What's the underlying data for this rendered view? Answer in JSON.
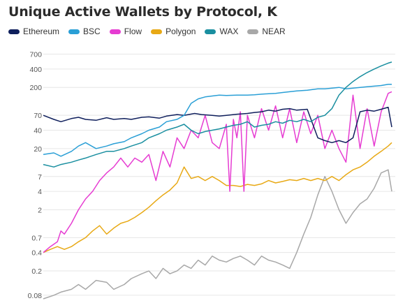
{
  "chart_data": {
    "type": "line",
    "title": "Unique Active Wallets by Protocol, K",
    "yscale": "log",
    "ylim": [
      0.07,
      900
    ],
    "yticks": [
      {
        "v": 700,
        "label": "700"
      },
      {
        "v": 400,
        "label": "400"
      },
      {
        "v": 200,
        "label": "200"
      },
      {
        "v": 70,
        "label": "70"
      },
      {
        "v": 40,
        "label": "40"
      },
      {
        "v": 20,
        "label": "20"
      },
      {
        "v": 7,
        "label": "7"
      },
      {
        "v": 4,
        "label": "4"
      },
      {
        "v": 2,
        "label": "2"
      },
      {
        "v": 0.7,
        "label": "0.7"
      },
      {
        "v": 0.4,
        "label": "0.4"
      },
      {
        "v": 0.2,
        "label": "0.2"
      },
      {
        "v": 0.08,
        "label": "0.08"
      }
    ],
    "xlim": [
      0,
      100
    ],
    "grid": true,
    "legend_position": "top-left",
    "series": [
      {
        "name": "Ethereum",
        "color": "#0f1f5c",
        "x": [
          0,
          3,
          5,
          8,
          10,
          12,
          15,
          18,
          20,
          23,
          25,
          28,
          30,
          33,
          35,
          38,
          40,
          43,
          45,
          48,
          50,
          52,
          55,
          58,
          60,
          62,
          64,
          66,
          68,
          70,
          72,
          75,
          78,
          80,
          82,
          84,
          86,
          88,
          90,
          92,
          94,
          96,
          98,
          99
        ],
        "y": [
          70,
          60,
          55,
          62,
          65,
          60,
          58,
          64,
          60,
          62,
          60,
          65,
          66,
          63,
          68,
          72,
          70,
          75,
          72,
          70,
          68,
          70,
          73,
          75,
          78,
          80,
          85,
          82,
          88,
          90,
          85,
          88,
          30,
          27,
          25,
          27,
          25,
          30,
          80,
          85,
          82,
          88,
          95,
          45
        ]
      },
      {
        "name": "BSC",
        "color": "#2a9fd6",
        "x": [
          0,
          3,
          5,
          8,
          10,
          12,
          15,
          18,
          20,
          23,
          25,
          28,
          30,
          33,
          35,
          38,
          40,
          42,
          44,
          46,
          48,
          50,
          52,
          55,
          58,
          60,
          62,
          64,
          66,
          68,
          70,
          72,
          75,
          78,
          80,
          82,
          84,
          86,
          88,
          90,
          92,
          94,
          96,
          98,
          99
        ],
        "y": [
          16,
          17,
          15,
          18,
          22,
          25,
          20,
          22,
          24,
          26,
          30,
          35,
          40,
          45,
          55,
          60,
          70,
          110,
          130,
          140,
          145,
          150,
          148,
          150,
          150,
          152,
          155,
          158,
          160,
          165,
          170,
          175,
          180,
          190,
          190,
          195,
          200,
          190,
          195,
          200,
          205,
          210,
          215,
          225,
          225
        ]
      },
      {
        "name": "Flow",
        "color": "#e63cd2",
        "x": [
          0,
          2,
          4,
          5,
          6,
          8,
          10,
          12,
          14,
          16,
          18,
          20,
          22,
          24,
          26,
          28,
          30,
          32,
          34,
          36,
          38,
          40,
          42,
          44,
          46,
          48,
          50,
          52,
          53,
          54,
          55,
          56,
          57,
          58,
          60,
          62,
          64,
          66,
          68,
          70,
          72,
          74,
          76,
          78,
          80,
          82,
          84,
          86,
          88,
          90,
          92,
          94,
          96,
          98,
          99
        ],
        "y": [
          0.4,
          0.5,
          0.6,
          0.9,
          0.8,
          1.2,
          2,
          3,
          4,
          6,
          8,
          10,
          14,
          10,
          14,
          12,
          16,
          6,
          18,
          10,
          30,
          20,
          40,
          30,
          70,
          25,
          20,
          50,
          4,
          60,
          30,
          80,
          4,
          70,
          30,
          90,
          40,
          100,
          30,
          90,
          25,
          80,
          35,
          70,
          20,
          40,
          20,
          12,
          150,
          20,
          90,
          22,
          80,
          160,
          170
        ]
      },
      {
        "name": "Polygon",
        "color": "#e8a915",
        "x": [
          0,
          2,
          4,
          6,
          8,
          10,
          12,
          14,
          16,
          18,
          20,
          22,
          24,
          26,
          28,
          30,
          32,
          34,
          36,
          38,
          40,
          42,
          44,
          46,
          48,
          50,
          52,
          54,
          56,
          58,
          60,
          62,
          64,
          66,
          68,
          70,
          72,
          74,
          76,
          78,
          80,
          82,
          84,
          86,
          88,
          90,
          92,
          94,
          96,
          98,
          99
        ],
        "y": [
          0.4,
          0.45,
          0.5,
          0.45,
          0.5,
          0.6,
          0.7,
          0.9,
          1.1,
          0.8,
          1.0,
          1.2,
          1.3,
          1.5,
          1.8,
          2.2,
          2.8,
          3.5,
          4.2,
          5.5,
          10,
          6.5,
          7,
          6,
          7,
          6,
          5,
          5,
          4.8,
          5.2,
          5,
          5.3,
          6,
          5.5,
          5.8,
          6.2,
          6,
          6.5,
          6,
          6.5,
          6,
          7,
          6,
          7.5,
          9,
          10,
          12,
          15,
          18,
          22,
          25
        ]
      },
      {
        "name": "WAX",
        "color": "#1a8fa0",
        "x": [
          0,
          3,
          5,
          8,
          10,
          12,
          15,
          18,
          20,
          23,
          25,
          28,
          30,
          33,
          35,
          38,
          40,
          42,
          44,
          46,
          48,
          50,
          52,
          54,
          56,
          58,
          60,
          62,
          64,
          66,
          68,
          70,
          72,
          74,
          76,
          78,
          80,
          82,
          84,
          86,
          88,
          90,
          92,
          94,
          96,
          98,
          99
        ],
        "y": [
          11,
          10,
          11,
          12,
          13,
          14,
          16,
          18,
          18,
          20,
          22,
          25,
          30,
          35,
          40,
          45,
          50,
          40,
          35,
          38,
          40,
          42,
          45,
          48,
          50,
          55,
          45,
          48,
          50,
          55,
          52,
          58,
          55,
          60,
          55,
          65,
          70,
          90,
          150,
          200,
          250,
          300,
          350,
          400,
          450,
          500,
          520
        ]
      },
      {
        "name": "NEAR",
        "color": "#a8a8a8",
        "x": [
          0,
          3,
          5,
          8,
          10,
          12,
          15,
          18,
          20,
          23,
          25,
          28,
          30,
          32,
          34,
          36,
          38,
          40,
          42,
          44,
          46,
          48,
          50,
          52,
          54,
          56,
          58,
          60,
          62,
          64,
          66,
          68,
          70,
          72,
          74,
          76,
          78,
          80,
          82,
          84,
          86,
          88,
          90,
          92,
          94,
          96,
          98,
          99
        ],
        "y": [
          0.07,
          0.08,
          0.09,
          0.1,
          0.12,
          0.1,
          0.14,
          0.13,
          0.1,
          0.12,
          0.15,
          0.18,
          0.2,
          0.15,
          0.22,
          0.18,
          0.2,
          0.25,
          0.22,
          0.3,
          0.25,
          0.35,
          0.3,
          0.28,
          0.32,
          0.35,
          0.3,
          0.25,
          0.35,
          0.3,
          0.28,
          0.25,
          0.22,
          0.4,
          0.8,
          1.5,
          3.5,
          7,
          4,
          2,
          1.2,
          1.8,
          2.5,
          3,
          4.5,
          8,
          9,
          4
        ]
      }
    ]
  }
}
